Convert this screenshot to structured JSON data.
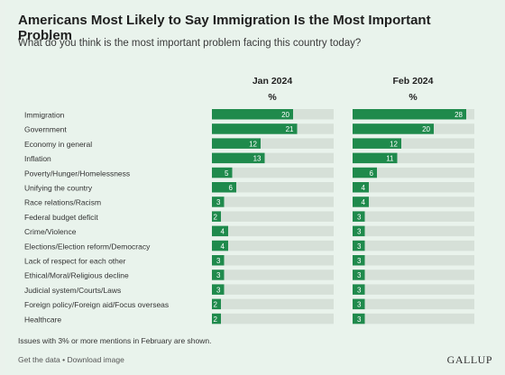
{
  "title": "Americans Most Likely to Say Immigration Is the Most Important Problem",
  "subtitle": "What do you think is the most important problem facing this country today?",
  "colors": {
    "bar": "#1f8a4c",
    "track": "#d6e0d8",
    "text_on_bar": "#ffffff",
    "label": "#333333"
  },
  "chart_data": {
    "type": "bar",
    "orientation": "horizontal",
    "unit_label": "%",
    "max": 30,
    "categories": [
      "Immigration",
      "Government",
      "Economy in general",
      "Inflation",
      "Poverty/Hunger/Homelessness",
      "Unifying the country",
      "Race relations/Racism",
      "Federal budget deficit",
      "Crime/Violence",
      "Elections/Election reform/Democracy",
      "Lack of respect for each other",
      "Ethical/Moral/Religious decline",
      "Judicial system/Courts/Laws",
      "Foreign policy/Foreign aid/Focus overseas",
      "Healthcare"
    ],
    "series": [
      {
        "name": "Jan 2024",
        "values": [
          20,
          21,
          12,
          13,
          5,
          6,
          3,
          2,
          4,
          4,
          3,
          3,
          3,
          2,
          2
        ]
      },
      {
        "name": "Feb 2024",
        "values": [
          28,
          20,
          12,
          11,
          6,
          4,
          4,
          3,
          3,
          3,
          3,
          3,
          3,
          3,
          3
        ]
      }
    ]
  },
  "footnote": "Issues with 3% or more mentions in February are shown.",
  "links": {
    "get_data": "Get the data",
    "separator": " • ",
    "download": "Download image"
  },
  "logo": "GALLUP"
}
